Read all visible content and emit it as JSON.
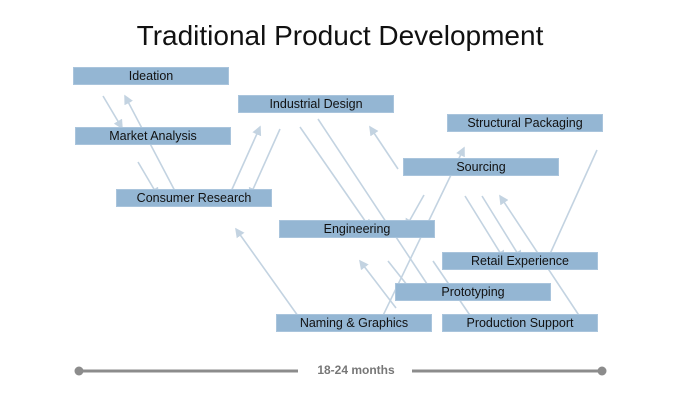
{
  "title": "Traditional Product Development",
  "stages": [
    {
      "id": "ideation",
      "label": "Ideation"
    },
    {
      "id": "industrial-design",
      "label": "Industrial Design"
    },
    {
      "id": "structural-packaging",
      "label": "Structural Packaging"
    },
    {
      "id": "market-analysis",
      "label": "Market Analysis"
    },
    {
      "id": "sourcing",
      "label": "Sourcing"
    },
    {
      "id": "consumer-research",
      "label": "Consumer Research"
    },
    {
      "id": "engineering",
      "label": "Engineering"
    },
    {
      "id": "retail-experience",
      "label": "Retail Experience"
    },
    {
      "id": "prototyping",
      "label": "Prototyping"
    },
    {
      "id": "naming-graphics",
      "label": "Naming & Graphics"
    },
    {
      "id": "production-support",
      "label": "Production Support"
    }
  ],
  "timeline": {
    "label": "18-24 months"
  },
  "colors": {
    "box": "#94b6d3",
    "arrow": "#c3d3e1",
    "timeline": "#8c8c8c"
  }
}
